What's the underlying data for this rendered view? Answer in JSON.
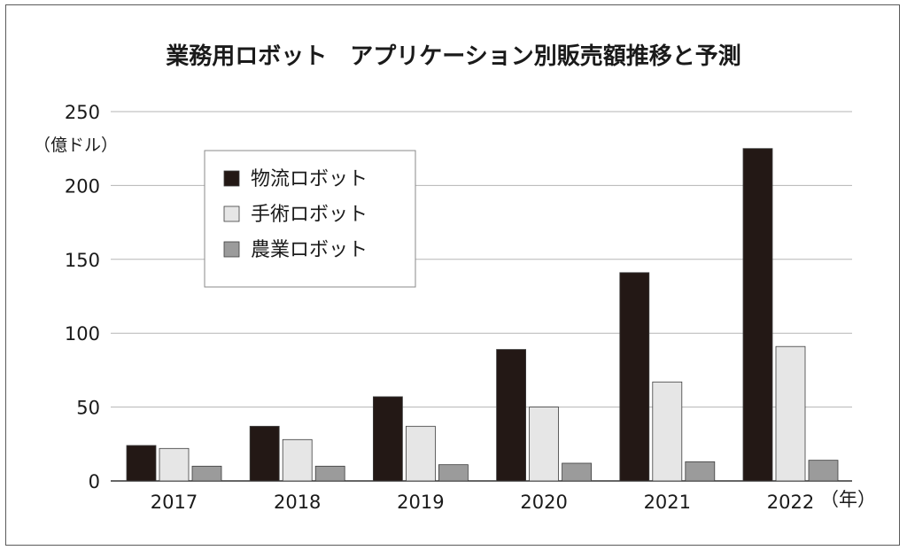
{
  "chart_data": {
    "type": "bar",
    "title": "業務用ロボット　アプリケーション別販売額推移と予測",
    "y_unit_label": "（億ドル）",
    "x_unit_label": "（年）",
    "categories": [
      "2017",
      "2018",
      "2019",
      "2020",
      "2021",
      "2022"
    ],
    "yticks": [
      "0",
      "50",
      "100",
      "150",
      "200",
      "250"
    ],
    "ylim": [
      0,
      250
    ],
    "grid": true,
    "legend_position": "top-left",
    "series": [
      {
        "name": "物流ロボット",
        "color": "#231815",
        "values": [
          24,
          37,
          57,
          89,
          141,
          225
        ]
      },
      {
        "name": "手術ロボット",
        "color": "#e6e6e6",
        "values": [
          22,
          28,
          37,
          50,
          67,
          91
        ]
      },
      {
        "name": "農業ロボット",
        "color": "#9b9b9b",
        "values": [
          10,
          10,
          11,
          12,
          13,
          14
        ]
      }
    ]
  }
}
